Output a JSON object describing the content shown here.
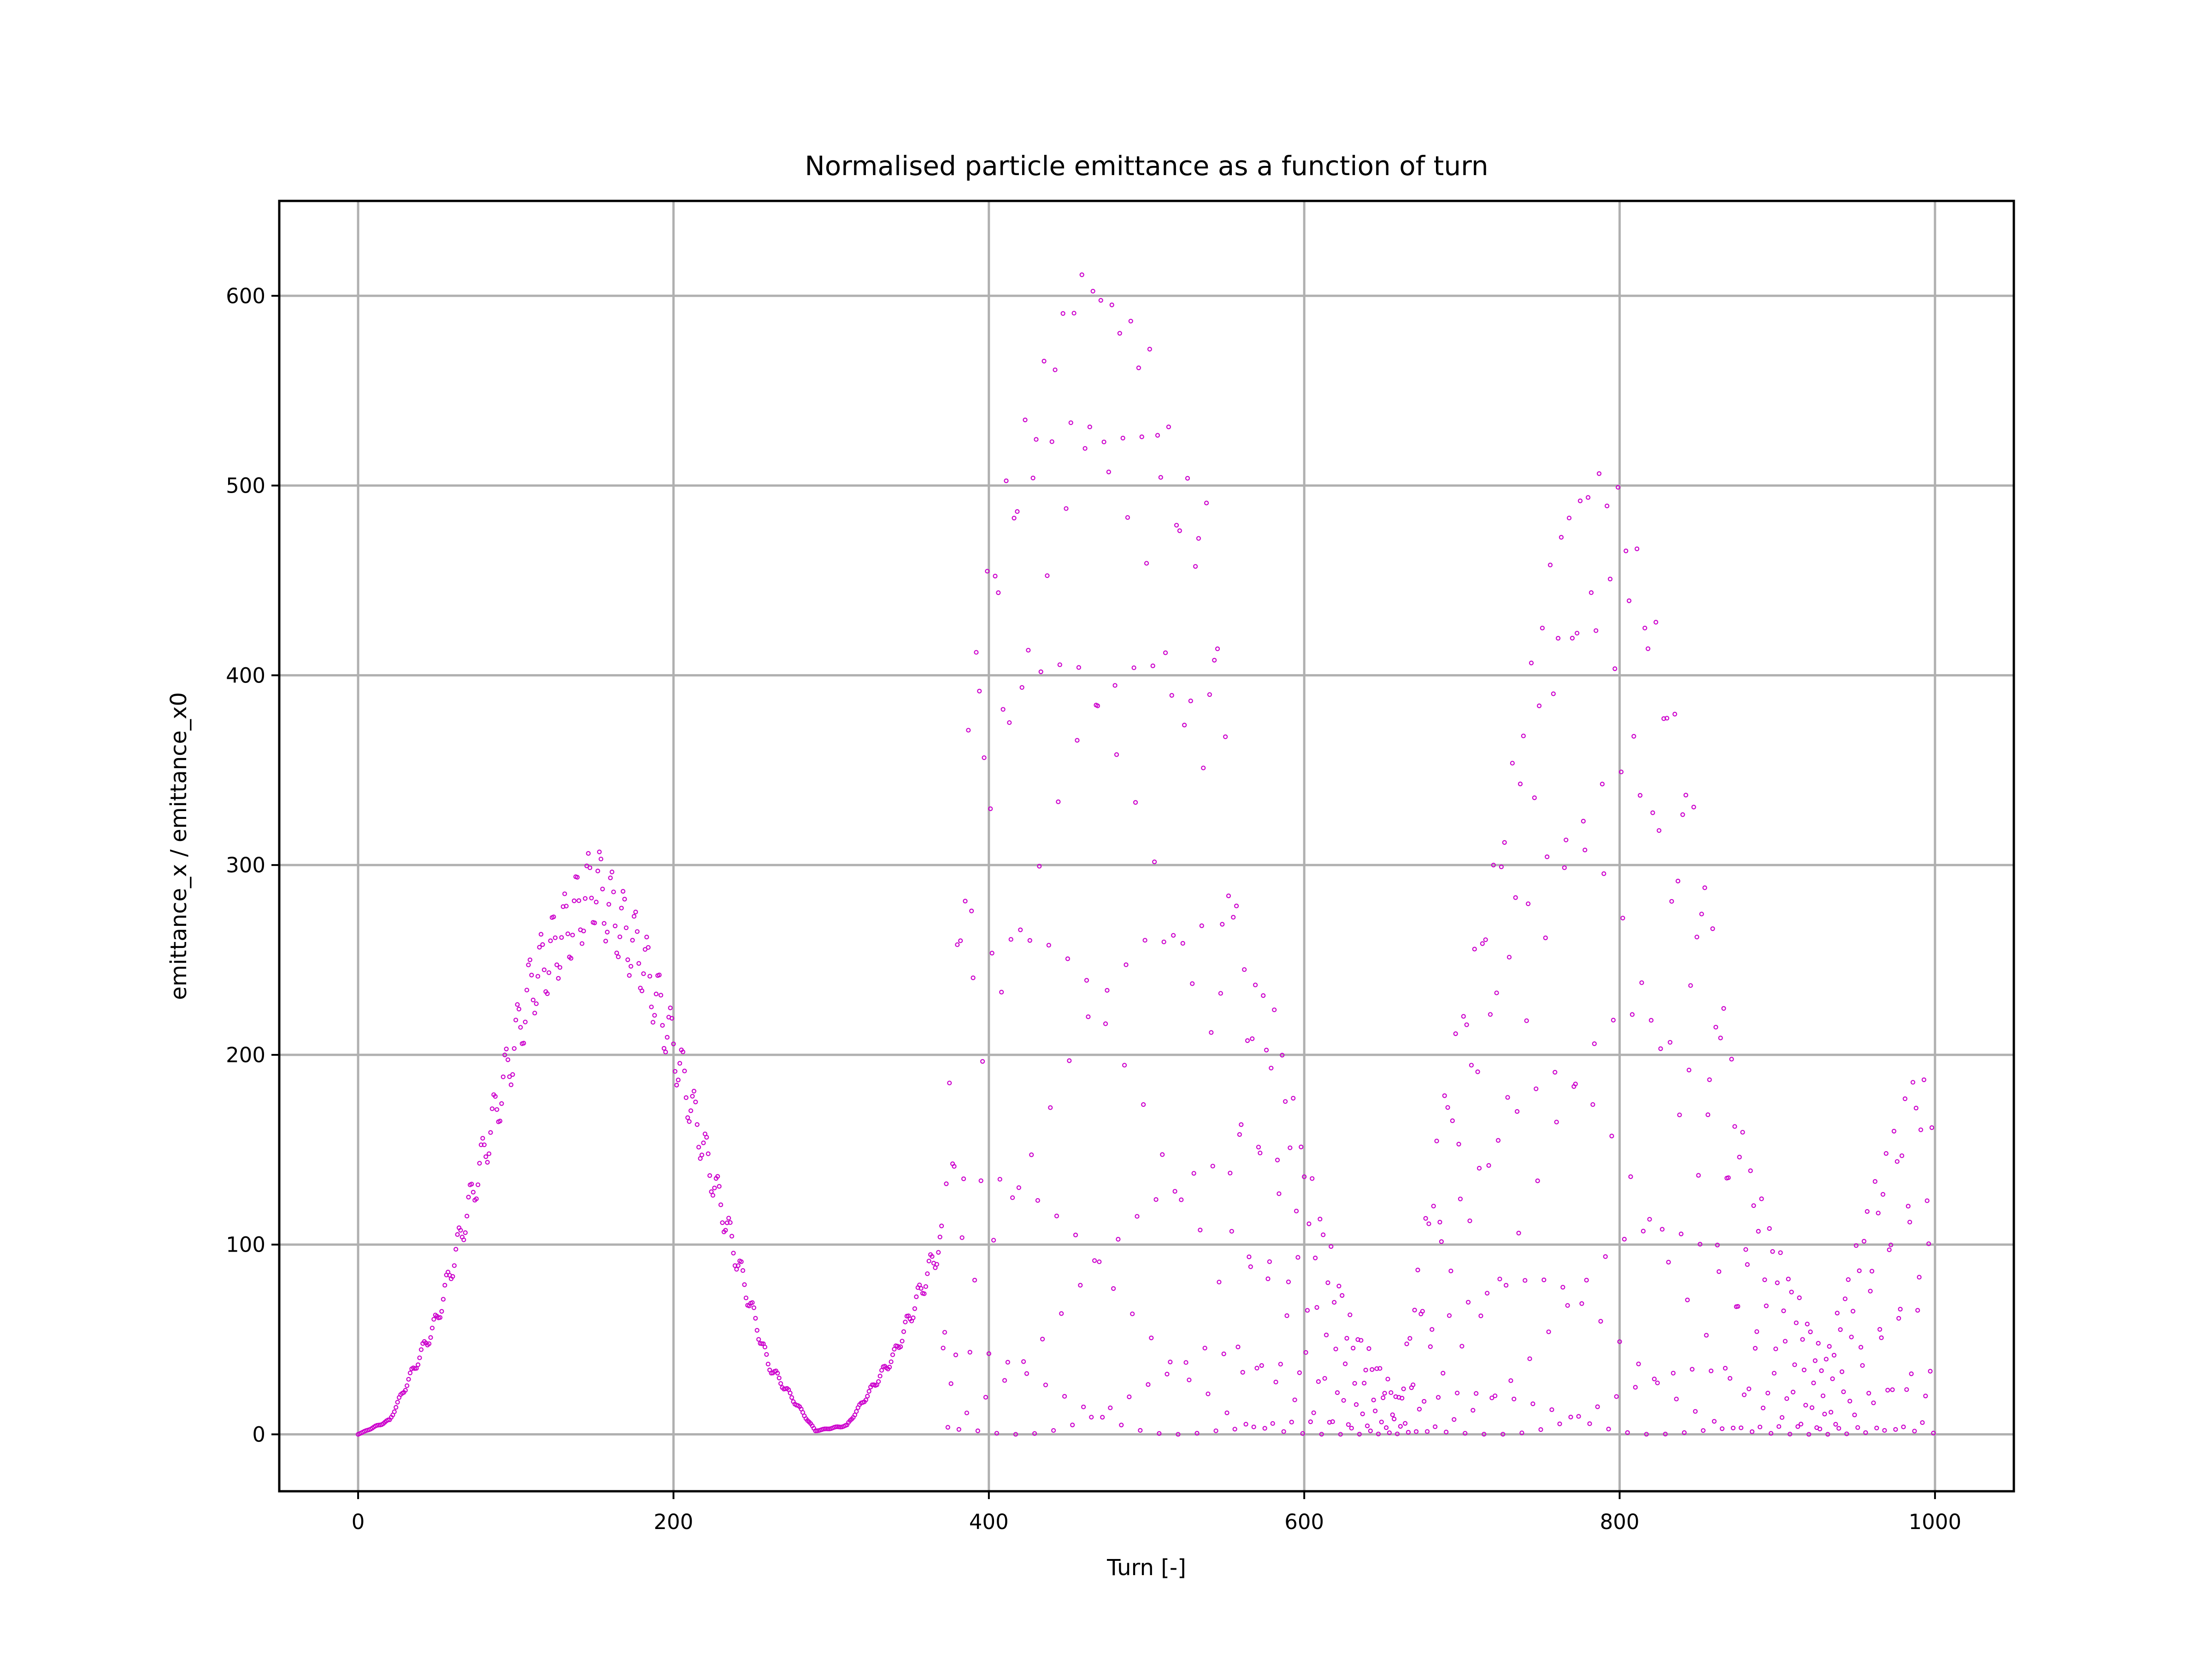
{
  "chart_data": {
    "type": "scatter",
    "title": "Normalised particle emittance as a function of turn",
    "xlabel": "Turn [-]",
    "ylabel": "emittance_x / emittance_x0",
    "xlim": [
      -50,
      1050
    ],
    "ylim": [
      -30,
      650
    ],
    "xticks": [
      0,
      200,
      400,
      600,
      800,
      1000
    ],
    "yticks": [
      0,
      100,
      200,
      300,
      400,
      500,
      600
    ],
    "xtick_labels": [
      "0",
      "200",
      "400",
      "600",
      "800",
      "1000"
    ],
    "ytick_labels": [
      "0",
      "100",
      "200",
      "300",
      "400",
      "500",
      "600"
    ],
    "grid": true,
    "legend": "none",
    "marker_color": "#cc00cc",
    "marker": "small hollow circle",
    "n_points": 1000,
    "x_start": 0,
    "x_step": 1,
    "envelope_points": [
      {
        "x": 0,
        "y": 0
      },
      {
        "x": 20,
        "y": 8
      },
      {
        "x": 50,
        "y": 65
      },
      {
        "x": 80,
        "y": 160
      },
      {
        "x": 110,
        "y": 255
      },
      {
        "x": 150,
        "y": 312
      },
      {
        "x": 180,
        "y": 270
      },
      {
        "x": 200,
        "y": 220
      },
      {
        "x": 230,
        "y": 130
      },
      {
        "x": 260,
        "y": 40
      },
      {
        "x": 290,
        "y": 2
      },
      {
        "x": 310,
        "y": 5
      },
      {
        "x": 340,
        "y": 45
      },
      {
        "x": 370,
        "y": 110
      },
      {
        "x": 390,
        "y": 420
      },
      {
        "x": 410,
        "y": 500
      },
      {
        "x": 440,
        "y": 580
      },
      {
        "x": 460,
        "y": 620
      },
      {
        "x": 480,
        "y": 600
      },
      {
        "x": 500,
        "y": 580
      },
      {
        "x": 520,
        "y": 510
      },
      {
        "x": 540,
        "y": 490
      },
      {
        "x": 560,
        "y": 250
      },
      {
        "x": 580,
        "y": 230
      },
      {
        "x": 600,
        "y": 150
      },
      {
        "x": 630,
        "y": 60
      },
      {
        "x": 660,
        "y": 20
      },
      {
        "x": 690,
        "y": 190
      },
      {
        "x": 720,
        "y": 300
      },
      {
        "x": 760,
        "y": 480
      },
      {
        "x": 785,
        "y": 512
      },
      {
        "x": 800,
        "y": 500
      },
      {
        "x": 820,
        "y": 440
      },
      {
        "x": 850,
        "y": 320
      },
      {
        "x": 880,
        "y": 150
      },
      {
        "x": 900,
        "y": 100
      },
      {
        "x": 930,
        "y": 40
      },
      {
        "x": 960,
        "y": 130
      },
      {
        "x": 990,
        "y": 200
      },
      {
        "x": 1000,
        "y": 160
      }
    ]
  }
}
